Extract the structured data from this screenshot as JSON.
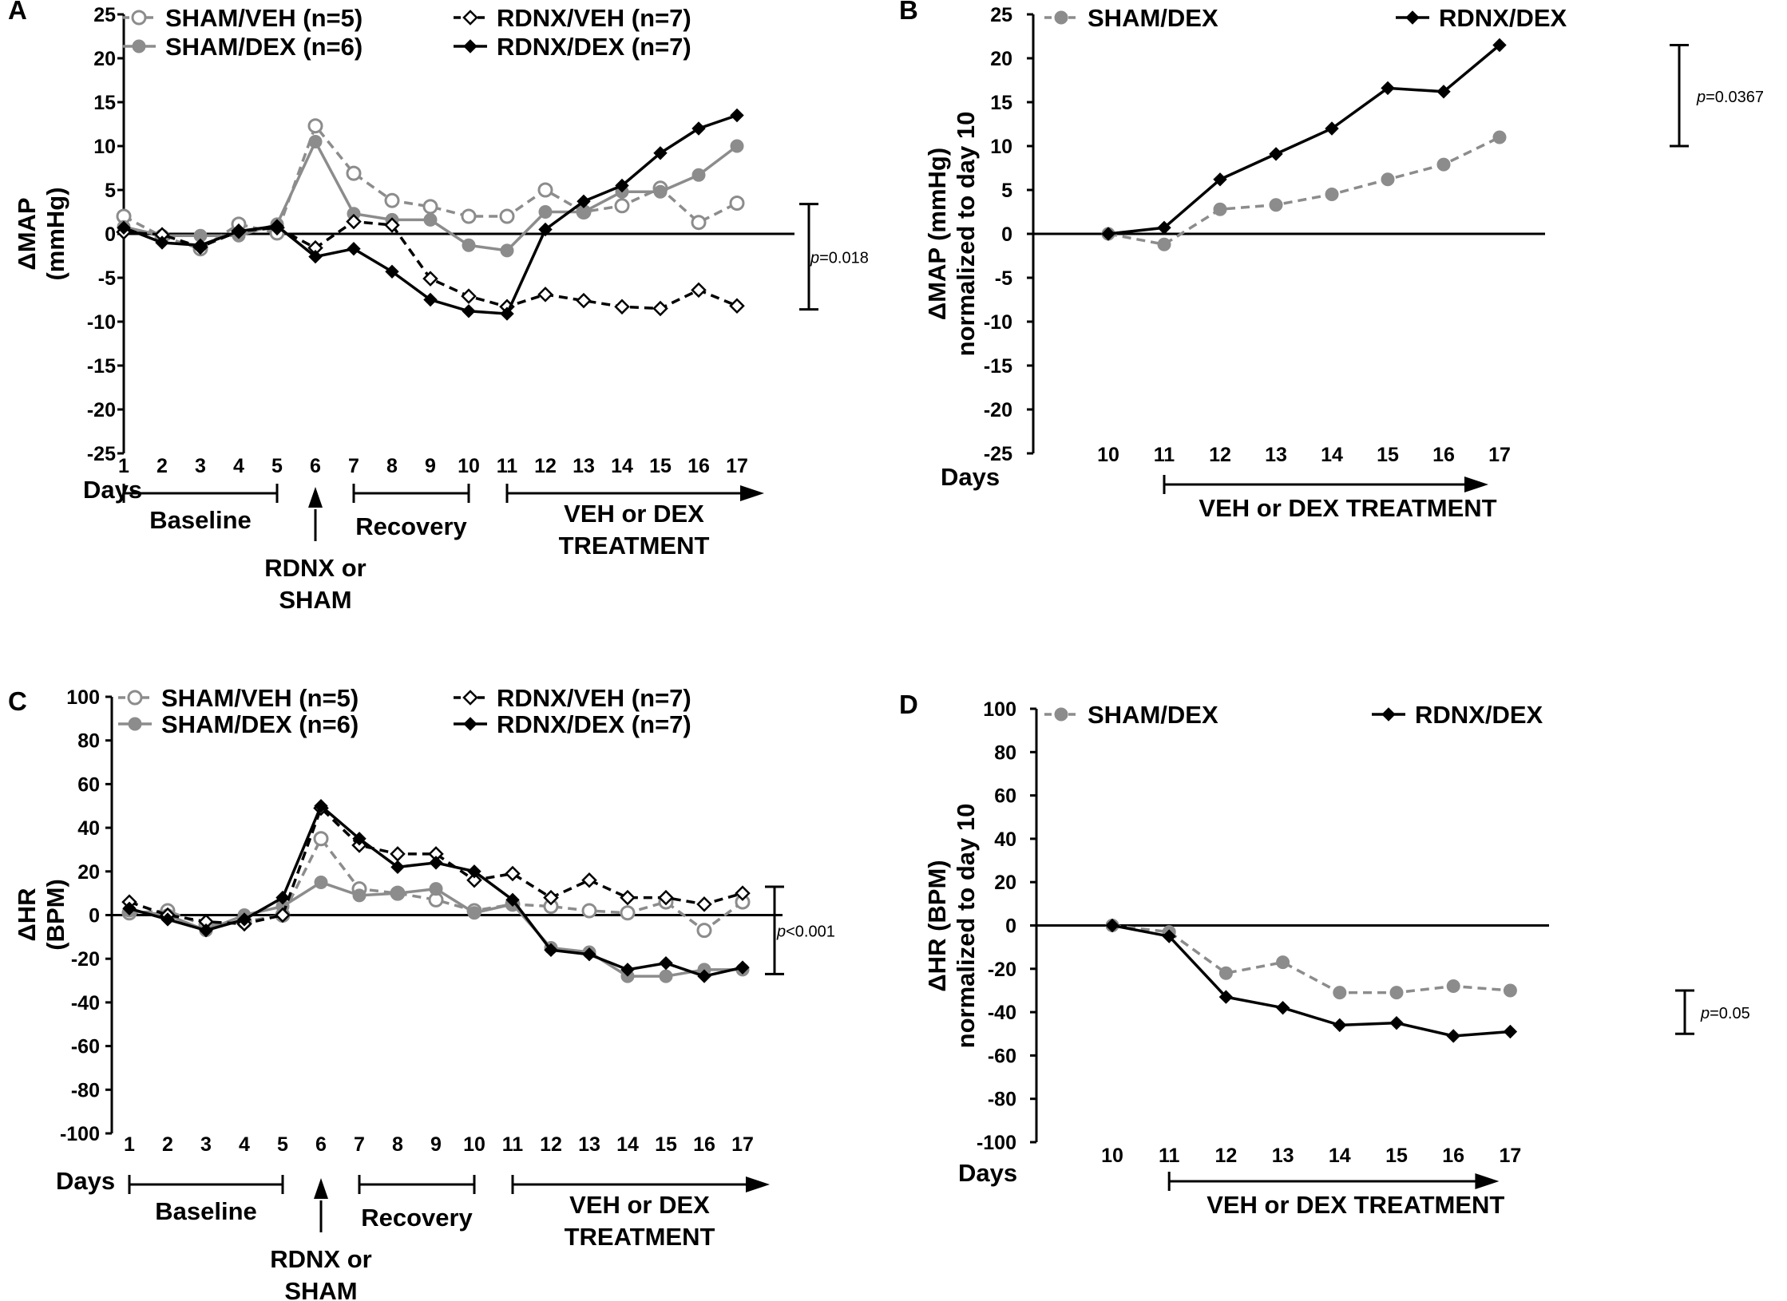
{
  "colors": {
    "sham_veh": "#999999",
    "sham_dex": "#888888",
    "rdnx_veh": "#000000",
    "rdnx_dex": "#000000"
  },
  "chart_data": [
    {
      "id": "A",
      "type": "line",
      "panel_label": "A",
      "ylabel_lines": [
        "ΔMAP",
        "(mmHg)"
      ],
      "xlabel": "Days",
      "ylim": [
        -25,
        25
      ],
      "yticks": [
        25,
        20,
        15,
        10,
        5,
        0,
        -5,
        -10,
        -15,
        -20,
        -25
      ],
      "x": [
        1,
        2,
        3,
        4,
        5,
        6,
        7,
        8,
        9,
        10,
        11,
        12,
        13,
        14,
        15,
        16,
        17
      ],
      "series": [
        {
          "name": "SHAM/VEH (n=5)",
          "style": "open-circle-dashed-gray",
          "values": [
            2.0,
            -0.3,
            -1.7,
            1.1,
            0.1,
            12.3,
            6.9,
            3.8,
            3.1,
            2.0,
            2.0,
            5.0,
            2.5,
            3.2,
            5.2,
            1.3,
            3.5
          ]
        },
        {
          "name": "SHAM/DEX (n=6)",
          "style": "filled-circle-solid-gray",
          "values": [
            0.8,
            -0.2,
            -0.2,
            -0.2,
            1.1,
            10.5,
            2.3,
            1.6,
            1.6,
            -1.3,
            -1.9,
            2.5,
            2.5,
            4.8,
            4.8,
            6.7,
            10.0
          ]
        },
        {
          "name": "RDNX/VEH (n=7)",
          "style": "open-diamond-dashed-black",
          "values": [
            0.2,
            -0.1,
            -1.5,
            0.3,
            0.7,
            -1.6,
            1.4,
            1.0,
            -5.1,
            -7.1,
            -8.3,
            -6.9,
            -7.6,
            -8.3,
            -8.5,
            -6.4,
            -8.2
          ]
        },
        {
          "name": "RDNX/DEX (n=7)",
          "style": "filled-diamond-solid-black",
          "values": [
            0.7,
            -1.0,
            -1.3,
            0.3,
            0.9,
            -2.6,
            -1.7,
            -4.3,
            -7.5,
            -8.8,
            -9.1,
            0.5,
            3.7,
            5.5,
            9.2,
            12.0,
            13.5
          ]
        }
      ],
      "significance": {
        "text": "p=0.018",
        "italic": "p",
        "rest": "=0.018",
        "y_top": 3.4,
        "y_bottom": -8.6
      },
      "annotations": {
        "baseline": "Baseline",
        "recovery": "Recovery",
        "surgery_line1": "RDNX or",
        "surgery_line2": "SHAM",
        "treatment_line1": "VEH or DEX",
        "treatment_line2": "TREATMENT"
      }
    },
    {
      "id": "B",
      "type": "line",
      "panel_label": "B",
      "ylabel_lines": [
        "ΔMAP (mmHg)",
        "normalized to day 10"
      ],
      "xlabel": "Days",
      "ylim": [
        -25,
        25
      ],
      "yticks": [
        25,
        20,
        15,
        10,
        5,
        0,
        -5,
        -10,
        -15,
        -20,
        -25
      ],
      "x": [
        10,
        11,
        12,
        13,
        14,
        15,
        16,
        17
      ],
      "series": [
        {
          "name": "SHAM/DEX",
          "style": "filled-circle-dashed-gray",
          "values": [
            0.0,
            -1.2,
            2.8,
            3.3,
            4.5,
            6.2,
            7.9,
            11.0
          ]
        },
        {
          "name": "RDNX/DEX",
          "style": "filled-diamond-solid-black",
          "values": [
            0.0,
            0.7,
            6.2,
            9.1,
            12.0,
            16.6,
            16.2,
            21.5
          ]
        }
      ],
      "significance": {
        "text": "p=0.0367",
        "italic": "p",
        "rest": "=0.0367",
        "y_top": 21.5,
        "y_bottom": 10.0
      },
      "annotations": {
        "treatment": "VEH or DEX TREATMENT"
      }
    },
    {
      "id": "C",
      "type": "line",
      "panel_label": "C",
      "ylabel_lines": [
        "ΔHR",
        "(BPM)"
      ],
      "xlabel": "Days",
      "ylim": [
        -100,
        100
      ],
      "yticks": [
        100,
        80,
        60,
        40,
        20,
        0,
        -20,
        -40,
        -60,
        -80,
        -100
      ],
      "x": [
        1,
        2,
        3,
        4,
        5,
        6,
        7,
        8,
        9,
        10,
        11,
        12,
        13,
        14,
        15,
        16,
        17
      ],
      "series": [
        {
          "name": "SHAM/VEH (n=5)",
          "style": "open-circle-dashed-gray",
          "values": [
            1,
            2,
            -5,
            -3,
            0,
            35,
            12,
            10,
            7,
            2,
            5,
            4,
            2,
            1,
            6,
            -7,
            6
          ]
        },
        {
          "name": "SHAM/DEX (n=6)",
          "style": "filled-circle-solid-gray",
          "values": [
            2,
            0,
            -7,
            0,
            4,
            15,
            9,
            10,
            12,
            1,
            5,
            -15,
            -17,
            -28,
            -28,
            -25,
            -25
          ]
        },
        {
          "name": "RDNX/VEH (n=7)",
          "style": "open-diamond-dashed-black",
          "values": [
            6,
            0,
            -3,
            -4,
            0,
            49,
            32,
            28,
            28,
            16,
            19,
            8,
            16,
            8,
            8,
            5,
            10
          ]
        },
        {
          "name": "RDNX/DEX (n=7)",
          "style": "filled-diamond-solid-black",
          "values": [
            3,
            -2,
            -7,
            -2,
            8,
            50,
            35,
            22,
            24,
            20,
            7,
            -16,
            -18,
            -25,
            -22,
            -28,
            -24
          ]
        }
      ],
      "significance": {
        "text": "p<0.001",
        "italic": "p",
        "rest": "<0.001",
        "y_top": 13,
        "y_bottom": -27
      },
      "annotations": {
        "baseline": "Baseline",
        "recovery": "Recovery",
        "surgery_line1": "RDNX or",
        "surgery_line2": "SHAM",
        "treatment_line1": "VEH or DEX",
        "treatment_line2": "TREATMENT"
      }
    },
    {
      "id": "D",
      "type": "line",
      "panel_label": "D",
      "ylabel_lines": [
        "ΔHR (BPM)",
        "normalized to day 10"
      ],
      "xlabel": "Days",
      "ylim": [
        -100,
        100
      ],
      "yticks": [
        100,
        80,
        60,
        40,
        20,
        0,
        -20,
        -40,
        -60,
        -80,
        -100
      ],
      "x": [
        10,
        11,
        12,
        13,
        14,
        15,
        16,
        17
      ],
      "series": [
        {
          "name": "SHAM/DEX",
          "style": "filled-circle-dashed-gray",
          "values": [
            0,
            -3,
            -22,
            -17,
            -31,
            -31,
            -28,
            -30
          ]
        },
        {
          "name": "RDNX/DEX",
          "style": "filled-diamond-solid-black",
          "values": [
            0,
            -5,
            -33,
            -38,
            -46,
            -45,
            -51,
            -49
          ]
        }
      ],
      "significance": {
        "text": "p=0.05",
        "italic": "p",
        "rest": "=0.05",
        "y_top": -30,
        "y_bottom": -50
      },
      "annotations": {
        "treatment": "VEH or DEX TREATMENT"
      }
    }
  ]
}
